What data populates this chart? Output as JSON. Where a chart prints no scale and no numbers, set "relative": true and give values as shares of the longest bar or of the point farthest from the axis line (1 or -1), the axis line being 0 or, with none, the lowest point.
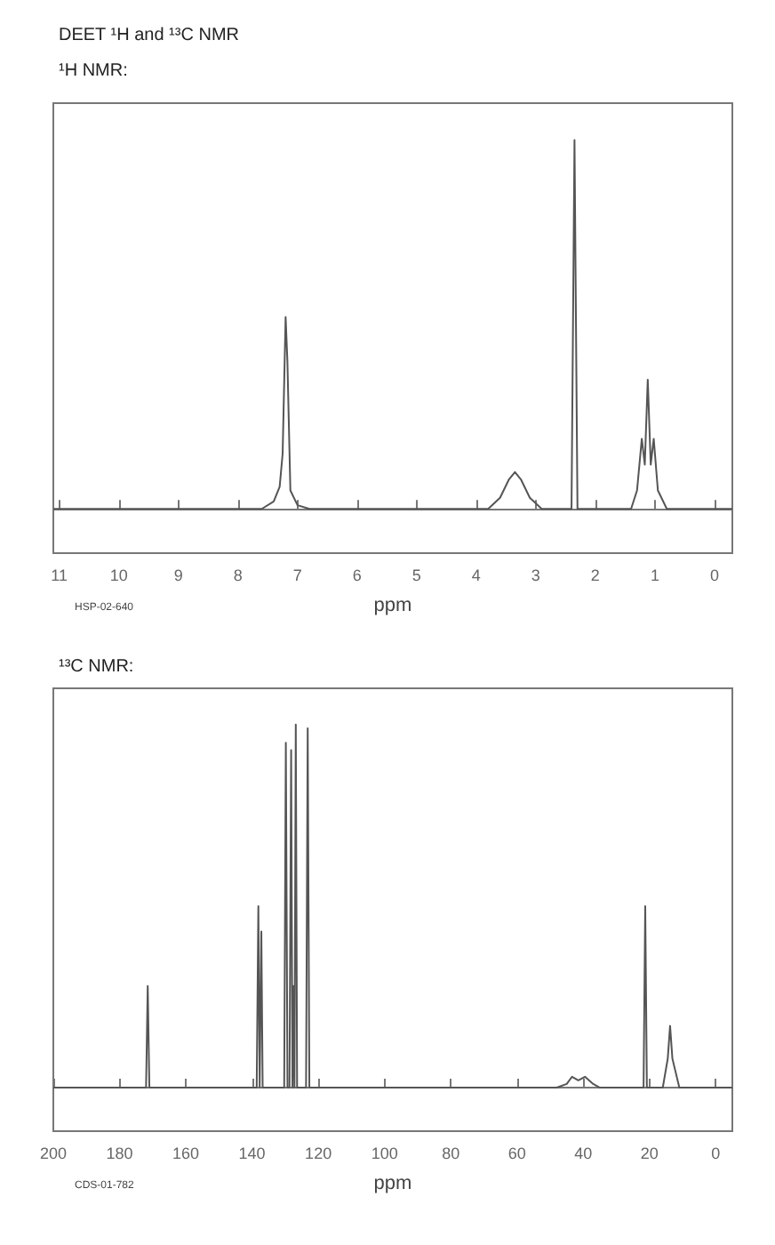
{
  "chart_data": [
    {
      "type": "line",
      "title": "DEET ¹H and ¹³C NMR",
      "subtitle": "¹H NMR:",
      "xlabel": "ppm",
      "relative": true,
      "color": "#555555",
      "marker": "none",
      "grid": false,
      "xlim": [
        11.1,
        -0.3
      ],
      "xticks": [
        11,
        10,
        9,
        8,
        7,
        6,
        5,
        4,
        3,
        2,
        1,
        0
      ],
      "annotations": [
        "HSP-02-640"
      ],
      "x": [
        11.1,
        7.6,
        7.4,
        7.35,
        7.3,
        7.25,
        7.2,
        7.17,
        7.12,
        7.0,
        6.8,
        3.8,
        3.6,
        3.45,
        3.35,
        3.25,
        3.1,
        2.9,
        2.4,
        2.35,
        2.3,
        1.4,
        1.3,
        1.22,
        1.17,
        1.12,
        1.07,
        1.02,
        0.95,
        0.8,
        -0.3
      ],
      "values": [
        0,
        0,
        0.02,
        0.04,
        0.06,
        0.15,
        0.52,
        0.4,
        0.05,
        0.01,
        0,
        0,
        0.03,
        0.08,
        0.1,
        0.08,
        0.03,
        0,
        0,
        1,
        0,
        0,
        0.05,
        0.19,
        0.12,
        0.35,
        0.12,
        0.19,
        0.05,
        0,
        0
      ]
    },
    {
      "type": "line",
      "title": "¹³C NMR:",
      "xlabel": "ppm",
      "relative": true,
      "color": "#555555",
      "marker": "none",
      "grid": false,
      "xlim": [
        200,
        -5
      ],
      "xticks": [
        200,
        180,
        160,
        140,
        120,
        100,
        80,
        60,
        40,
        20,
        0
      ],
      "annotations": [
        "CDS-01-782"
      ],
      "x": [
        200,
        172,
        171.5,
        171,
        138.6,
        138.1,
        137.7,
        137.2,
        136.8,
        130.3,
        129.8,
        129.3,
        128.7,
        128.2,
        127.8,
        127.5,
        127.2,
        126.8,
        126.4,
        123.7,
        123.2,
        122.7,
        48,
        45,
        43.4,
        41.5,
        39.5,
        37,
        35,
        21.8,
        21.3,
        20.8,
        16,
        14.5,
        13.8,
        13.1,
        11,
        -5
      ],
      "values": [
        0,
        0,
        0.28,
        0,
        0,
        0.5,
        0,
        0.43,
        0,
        0,
        0.95,
        0,
        0,
        0.93,
        0,
        0.28,
        0,
        1,
        0,
        0,
        0.99,
        0,
        0,
        0.01,
        0.03,
        0.02,
        0.03,
        0.01,
        0,
        0,
        0.5,
        0,
        0,
        0.08,
        0.17,
        0.08,
        0,
        0
      ]
    }
  ]
}
